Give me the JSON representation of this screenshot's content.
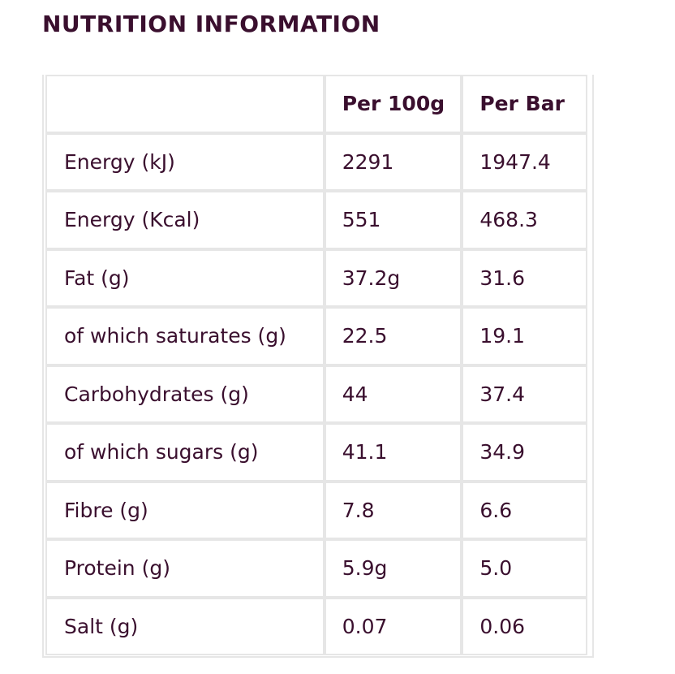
{
  "title": "NUTRITION INFORMATION",
  "table": {
    "headers": [
      "",
      "Per 100g",
      "Per Bar"
    ],
    "rows": [
      {
        "label": "Energy (kJ)",
        "per100g": "2291",
        "perBar": "1947.4"
      },
      {
        "label": "Energy (Kcal)",
        "per100g": "551",
        "perBar": "468.3"
      },
      {
        "label": "Fat (g)",
        "per100g": "37.2g",
        "perBar": "31.6"
      },
      {
        "label": "of which saturates (g)",
        "per100g": "22.5",
        "perBar": "19.1"
      },
      {
        "label": "Carbohydrates (g)",
        "per100g": "44",
        "perBar": "37.4"
      },
      {
        "label": "of which sugars (g)",
        "per100g": "41.1",
        "perBar": "34.9"
      },
      {
        "label": "Fibre (g)",
        "per100g": "7.8",
        "perBar": "6.6"
      },
      {
        "label": "Protein (g)",
        "per100g": "5.9g",
        "perBar": "5.0"
      },
      {
        "label": "Salt (g)",
        "per100g": "0.07",
        "perBar": "0.06"
      }
    ]
  },
  "colors": {
    "text": "#3a0f2e",
    "border": "#e6e6e6"
  }
}
